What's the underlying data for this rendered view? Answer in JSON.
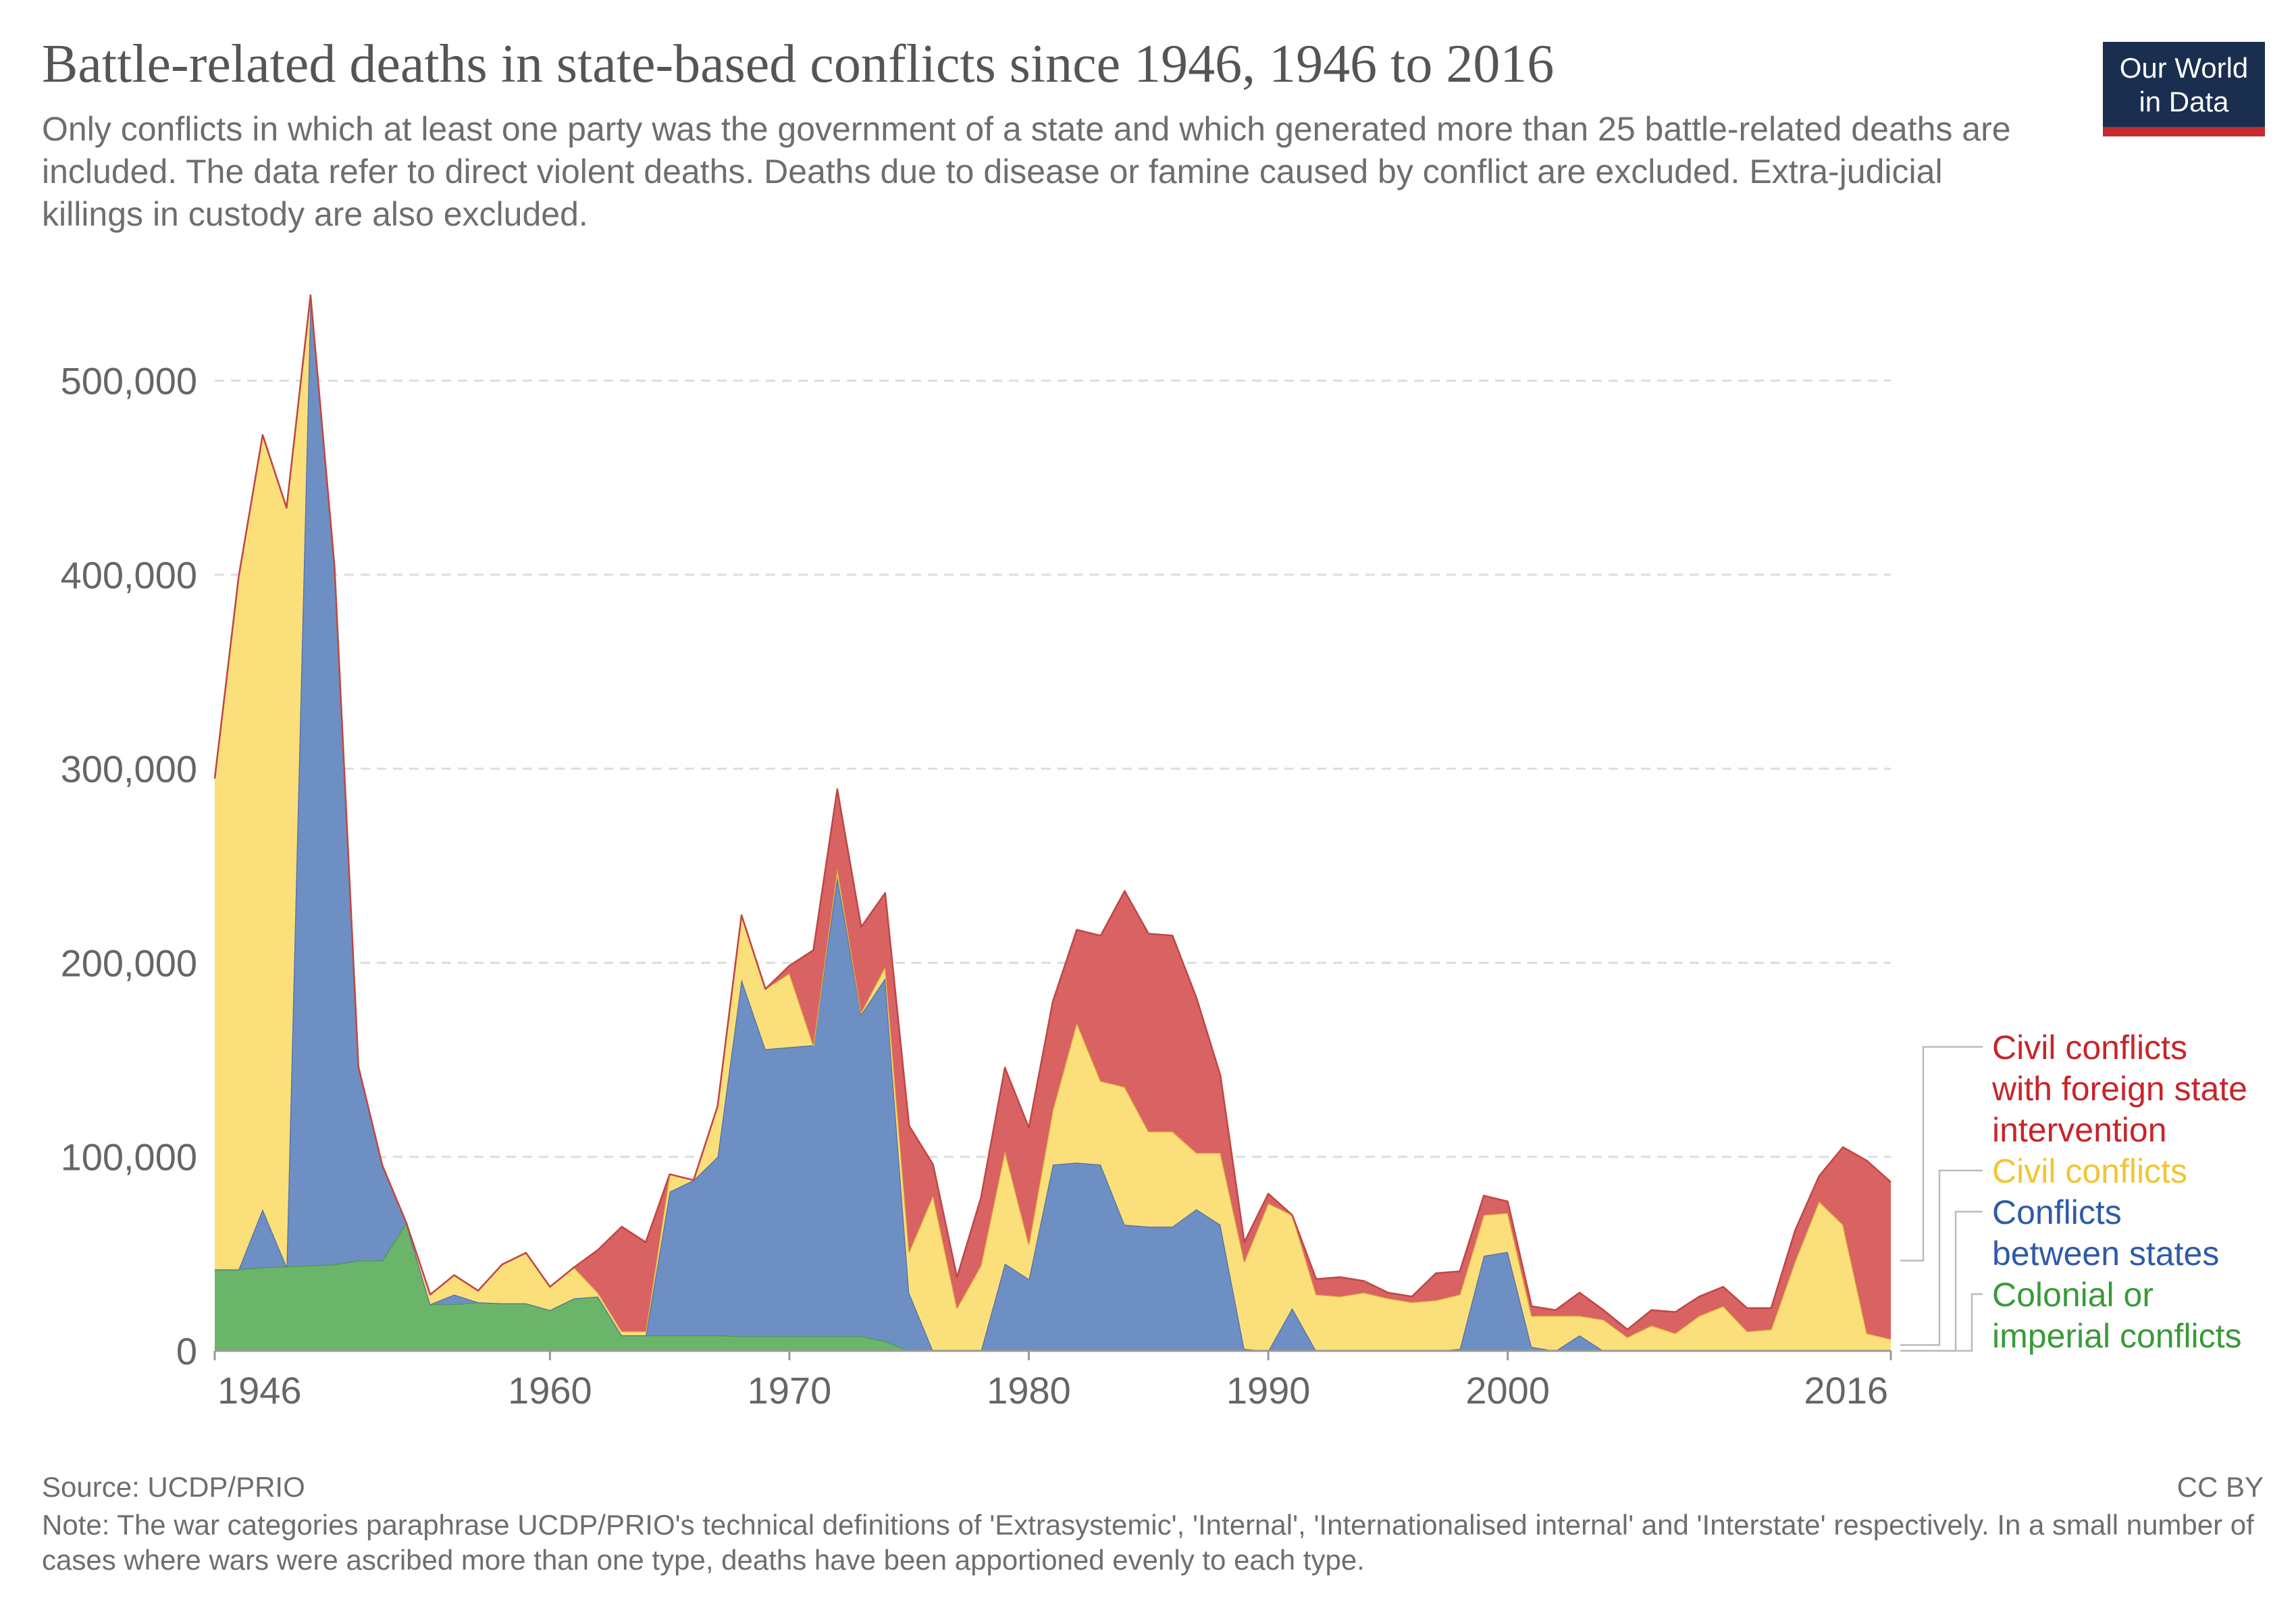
{
  "title": "Battle-related deaths in state-based conflicts since 1946, 1946 to 2016",
  "subtitle": "Only conflicts in which at least one party was the government of a state and which generated more than 25 battle-related deaths are included. The data refer to direct violent deaths. Deaths due to disease or famine caused by conflict are excluded. Extra-judicial killings in custody are also excluded.",
  "logo": {
    "line1": "Our World",
    "line2": "in Data",
    "bg_color": "#1a2e4f",
    "accent_color": "#c6292e"
  },
  "footer": {
    "source": "Source: UCDP/PRIO",
    "license": "CC BY",
    "note": "Note: The war categories paraphrase UCDP/PRIO's technical definitions of 'Extrasystemic', 'Internal', 'Internationalised internal' and 'Interstate' respectively. In a small number of cases where wars were ascribed more than one type, deaths have been apportioned evenly to each type."
  },
  "chart_data": {
    "type": "area",
    "stacked": true,
    "title": "Battle-related deaths in state-based conflicts since 1946, 1946 to 2016",
    "x": [
      1946,
      1947,
      1948,
      1949,
      1950,
      1951,
      1952,
      1953,
      1954,
      1955,
      1956,
      1957,
      1958,
      1959,
      1960,
      1961,
      1962,
      1963,
      1964,
      1965,
      1966,
      1967,
      1968,
      1969,
      1970,
      1971,
      1972,
      1973,
      1974,
      1975,
      1976,
      1977,
      1978,
      1979,
      1980,
      1981,
      1982,
      1983,
      1984,
      1985,
      1986,
      1987,
      1988,
      1989,
      1990,
      1991,
      1992,
      1993,
      1994,
      1995,
      1996,
      1997,
      1998,
      1999,
      2000,
      2001,
      2002,
      2003,
      2004,
      2005,
      2006,
      2007,
      2008,
      2009,
      2010,
      2011,
      2012,
      2013,
      2014,
      2015,
      2016
    ],
    "x_ticks": [
      "1946",
      "1960",
      "1970",
      "1980",
      "1990",
      "2000",
      "2016"
    ],
    "y_ticks": [
      "0",
      "100,000",
      "200,000",
      "300,000",
      "400,000",
      "500,000"
    ],
    "ylim": [
      0,
      550000
    ],
    "grid": true,
    "legend_placement": "right",
    "series": [
      {
        "name": "Colonial or imperial conflicts",
        "color": "#6ab56a",
        "line_color": "#4c9a4c",
        "values": [
          42000,
          42000,
          43000,
          43500,
          44000,
          44500,
          46500,
          46500,
          66000,
          24000,
          24000,
          25000,
          24500,
          24500,
          21000,
          27000,
          28000,
          8000,
          8000,
          8000,
          8000,
          8000,
          7500,
          7500,
          7500,
          7500,
          7500,
          7500,
          5000,
          0,
          0,
          0,
          0,
          0,
          0,
          0,
          0,
          0,
          0,
          0,
          0,
          0,
          0,
          0,
          0,
          0,
          0,
          0,
          0,
          0,
          0,
          0,
          0,
          0,
          0,
          0,
          0,
          0,
          0,
          0,
          0,
          0,
          0,
          0,
          0,
          0,
          0,
          0,
          0,
          0,
          0
        ]
      },
      {
        "name": "Conflicts between states",
        "color": "#6e8fc3",
        "line_color": "#4f6fa8",
        "values": [
          0,
          0,
          30000,
          0,
          500000,
          360000,
          100000,
          49000,
          0,
          0,
          5000,
          0,
          0,
          0,
          0,
          0,
          0,
          0,
          0,
          74000,
          80000,
          92000,
          184000,
          148000,
          149000,
          150000,
          237000,
          166000,
          187000,
          30000,
          0,
          0,
          0,
          45000,
          37000,
          96000,
          97000,
          96000,
          65000,
          64000,
          64000,
          73000,
          65000,
          1000,
          0,
          22000,
          0,
          0,
          0,
          0,
          0,
          0,
          1000,
          49000,
          51000,
          2000,
          0,
          8000,
          0,
          0,
          0,
          0,
          0,
          0,
          0,
          0,
          0,
          0,
          0,
          0,
          0
        ]
      },
      {
        "name": "Civil conflicts",
        "color": "#fbdf7a",
        "line_color": "#e0b83a",
        "values": [
          253000,
          357000,
          399000,
          391000,
          0,
          0,
          0,
          0,
          0,
          5000,
          10000,
          6000,
          20000,
          26000,
          12000,
          16000,
          2000,
          2000,
          2000,
          9000,
          0,
          26000,
          33000,
          31000,
          38000,
          0,
          4000,
          1000,
          6000,
          21000,
          80000,
          22000,
          44000,
          58000,
          18000,
          28000,
          72000,
          43000,
          71000,
          49000,
          49000,
          29000,
          37000,
          45000,
          76000,
          48000,
          29000,
          28000,
          30000,
          27000,
          25000,
          26000,
          28000,
          21000,
          20000,
          16000,
          18000,
          10000,
          16000,
          7000,
          13000,
          9000,
          18000,
          23000,
          10000,
          11000,
          46000,
          77000,
          65000,
          9000,
          6000
        ]
      },
      {
        "name": "Civil conflicts with foreign state intervention",
        "color": "#d96262",
        "line_color": "#c04545",
        "values": [
          0,
          0,
          0,
          0,
          0,
          0,
          0,
          0,
          0,
          0,
          0,
          0,
          0,
          0,
          0,
          0,
          22000,
          54000,
          46000,
          0,
          0,
          0,
          0,
          0,
          4000,
          49000,
          41000,
          44000,
          38000,
          65000,
          16000,
          16000,
          35000,
          43000,
          60000,
          56000,
          48000,
          75000,
          101000,
          102000,
          101000,
          80000,
          40000,
          10000,
          5000,
          0,
          8000,
          10000,
          6000,
          3000,
          3000,
          14000,
          12000,
          10000,
          6000,
          5000,
          3000,
          12000,
          5000,
          4000,
          8000,
          11000,
          10000,
          10000,
          12000,
          11000,
          16000,
          13000,
          40000,
          89000,
          81000
        ]
      }
    ]
  }
}
